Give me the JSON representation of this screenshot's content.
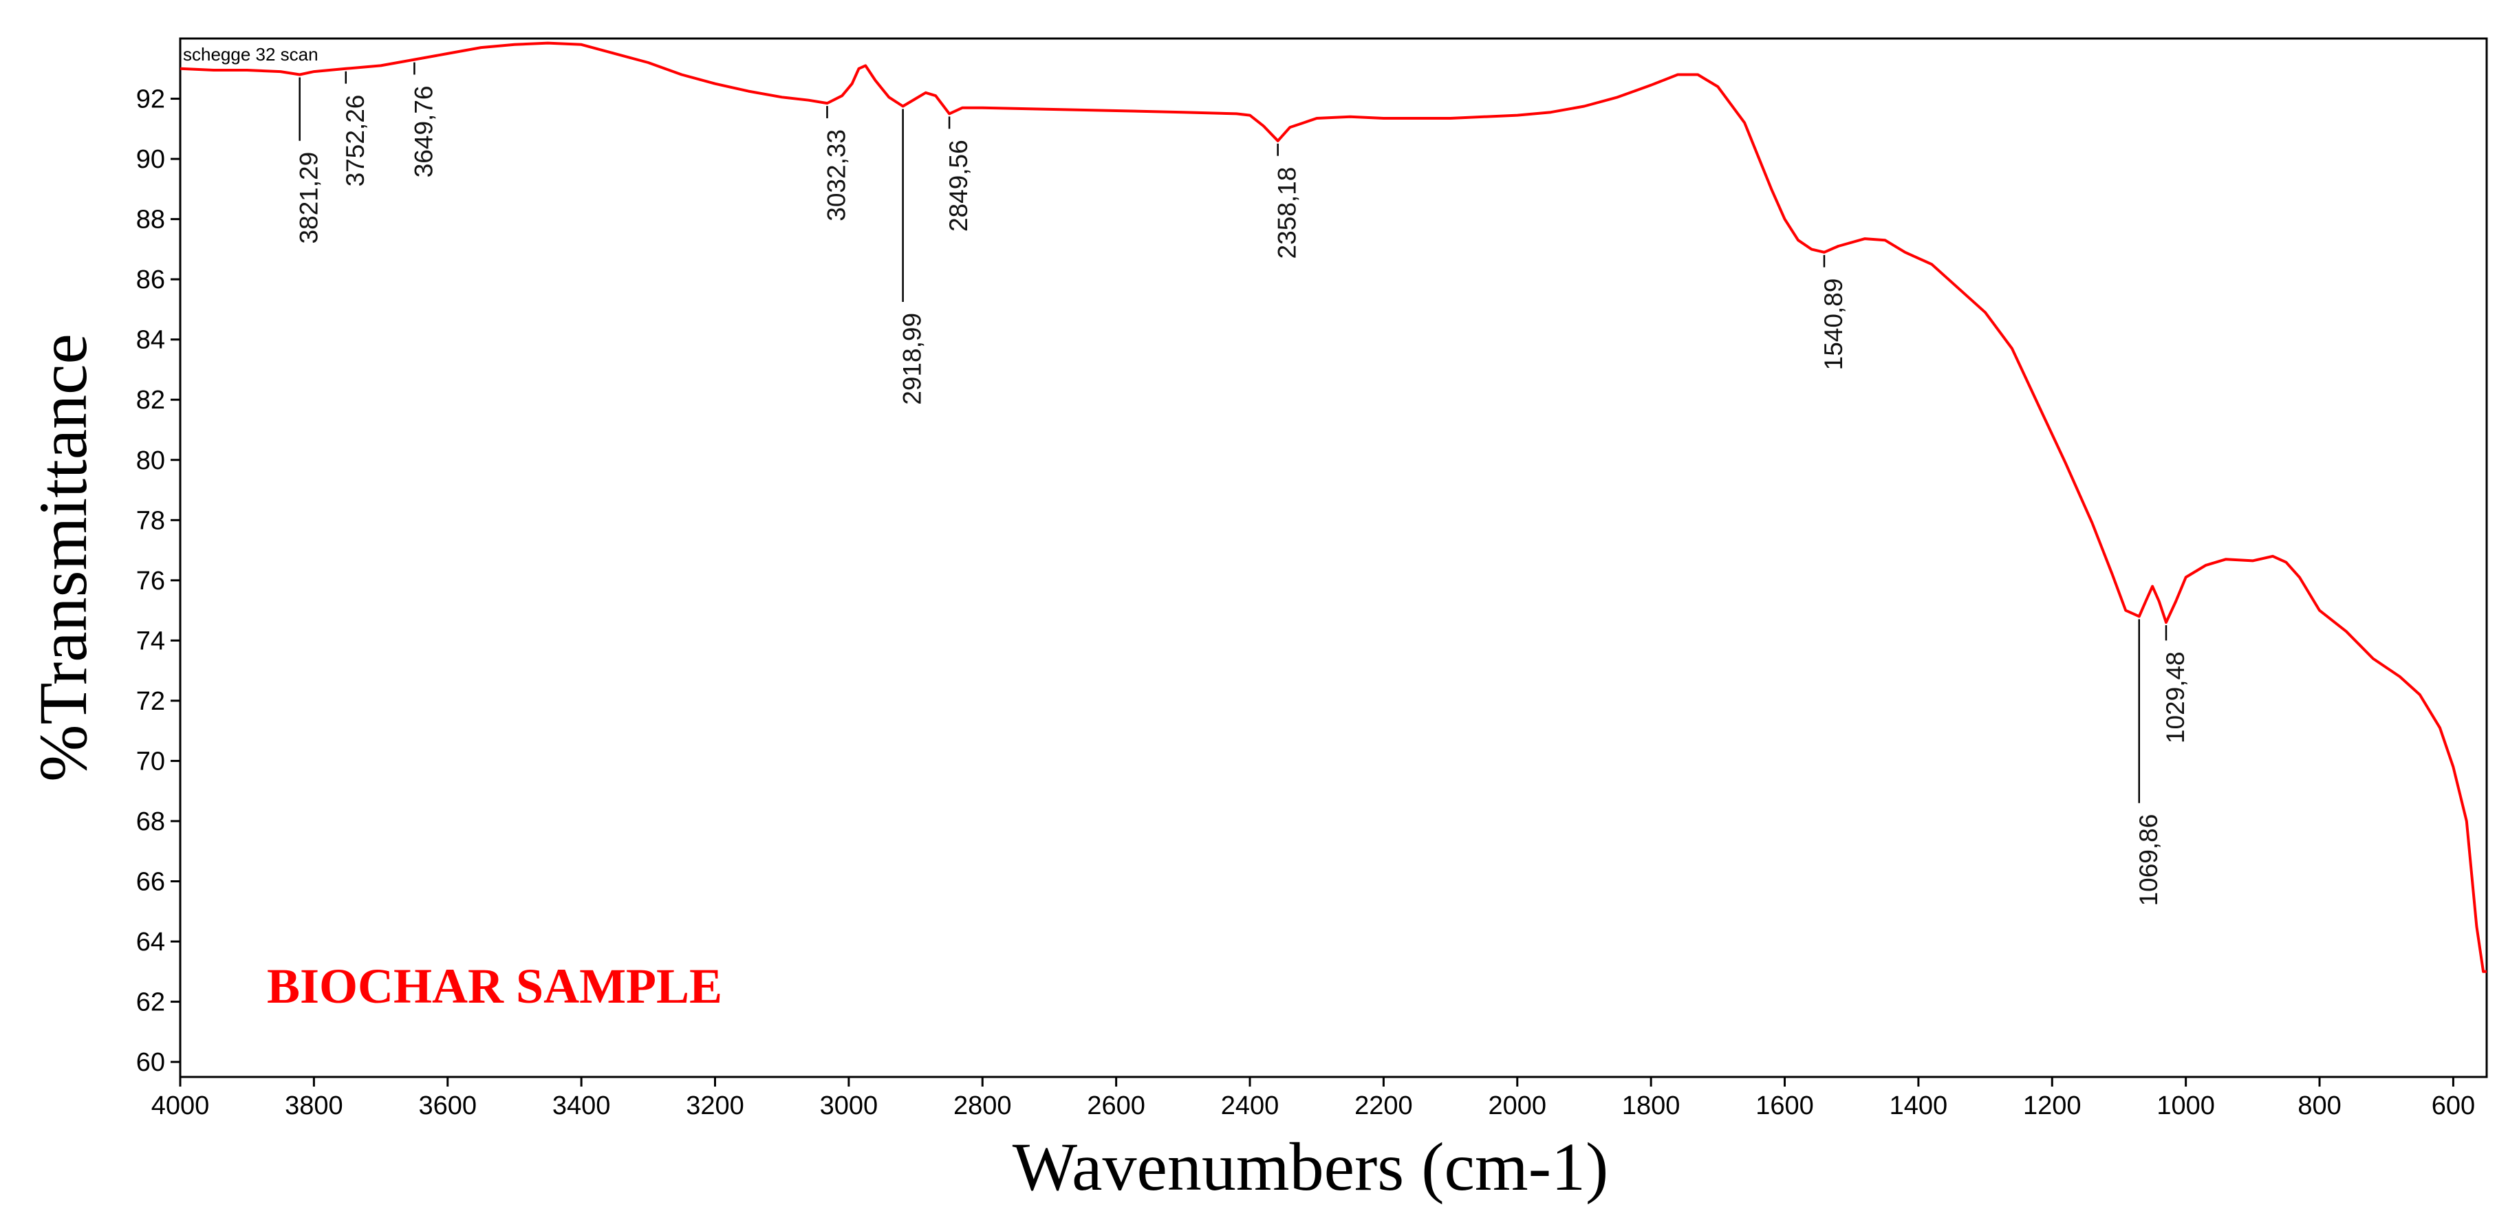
{
  "chart_data": {
    "type": "line",
    "series_name": "schegge 32 scan",
    "xlabel": "Wavenumbers (cm-1)",
    "ylabel": "%Transmittance",
    "annotation": "BIOCHAR SAMPLE",
    "annotation_color": "#ff0000",
    "line_color": "#ff0000",
    "xlim": [
      4000,
      550
    ],
    "ylim": [
      59.5,
      94
    ],
    "x_ticks": [
      4000,
      3800,
      3600,
      3400,
      3200,
      3000,
      2800,
      2600,
      2400,
      2200,
      2000,
      1800,
      1600,
      1400,
      1200,
      1000,
      800,
      600
    ],
    "x_tick_labels": [
      "4000",
      "3800",
      "3600",
      "3400",
      "3200",
      "3000",
      "2800",
      "2600",
      "2400",
      "2200",
      "2000",
      "1800",
      "1600",
      "1400",
      "1200",
      "1000",
      "800",
      "600"
    ],
    "y_ticks": [
      60,
      62,
      64,
      66,
      68,
      70,
      72,
      74,
      76,
      78,
      80,
      82,
      84,
      86,
      88,
      90,
      92
    ],
    "y_tick_labels": [
      "60",
      "62",
      "64",
      "66",
      "68",
      "70",
      "72",
      "74",
      "76",
      "78",
      "80",
      "82",
      "84",
      "86",
      "88",
      "90",
      "92"
    ],
    "spectrum": [
      [
        4000,
        93.0
      ],
      [
        3950,
        92.95
      ],
      [
        3900,
        92.95
      ],
      [
        3850,
        92.9
      ],
      [
        3821.29,
        92.8
      ],
      [
        3800,
        92.9
      ],
      [
        3752.26,
        93.0
      ],
      [
        3700,
        93.1
      ],
      [
        3649.76,
        93.3
      ],
      [
        3600,
        93.5
      ],
      [
        3550,
        93.7
      ],
      [
        3500,
        93.8
      ],
      [
        3450,
        93.85
      ],
      [
        3400,
        93.8
      ],
      [
        3350,
        93.5
      ],
      [
        3300,
        93.2
      ],
      [
        3250,
        92.8
      ],
      [
        3200,
        92.5
      ],
      [
        3150,
        92.25
      ],
      [
        3100,
        92.05
      ],
      [
        3060,
        91.95
      ],
      [
        3032.33,
        91.85
      ],
      [
        3010,
        92.1
      ],
      [
        2995,
        92.5
      ],
      [
        2985,
        93.0
      ],
      [
        2975,
        93.1
      ],
      [
        2960,
        92.6
      ],
      [
        2940,
        92.05
      ],
      [
        2918.99,
        91.75
      ],
      [
        2900,
        92.0
      ],
      [
        2885,
        92.2
      ],
      [
        2870,
        92.1
      ],
      [
        2849.56,
        91.5
      ],
      [
        2830,
        91.7
      ],
      [
        2800,
        91.7
      ],
      [
        2700,
        91.65
      ],
      [
        2600,
        91.6
      ],
      [
        2500,
        91.55
      ],
      [
        2420,
        91.5
      ],
      [
        2400,
        91.45
      ],
      [
        2380,
        91.1
      ],
      [
        2358.18,
        90.6
      ],
      [
        2340,
        91.05
      ],
      [
        2320,
        91.2
      ],
      [
        2300,
        91.35
      ],
      [
        2250,
        91.4
      ],
      [
        2200,
        91.35
      ],
      [
        2100,
        91.35
      ],
      [
        2000,
        91.45
      ],
      [
        1950,
        91.55
      ],
      [
        1900,
        91.75
      ],
      [
        1850,
        92.05
      ],
      [
        1800,
        92.45
      ],
      [
        1760,
        92.8
      ],
      [
        1730,
        92.8
      ],
      [
        1700,
        92.4
      ],
      [
        1660,
        91.2
      ],
      [
        1620,
        89.0
      ],
      [
        1600,
        88.0
      ],
      [
        1580,
        87.3
      ],
      [
        1560,
        87.0
      ],
      [
        1540.89,
        86.9
      ],
      [
        1520,
        87.1
      ],
      [
        1480,
        87.35
      ],
      [
        1450,
        87.3
      ],
      [
        1420,
        86.9
      ],
      [
        1380,
        86.5
      ],
      [
        1340,
        85.7
      ],
      [
        1300,
        84.9
      ],
      [
        1260,
        83.7
      ],
      [
        1220,
        81.8
      ],
      [
        1180,
        79.9
      ],
      [
        1140,
        77.9
      ],
      [
        1110,
        76.2
      ],
      [
        1090,
        75.0
      ],
      [
        1069.86,
        74.8
      ],
      [
        1060,
        75.3
      ],
      [
        1050,
        75.8
      ],
      [
        1040,
        75.3
      ],
      [
        1029.48,
        74.6
      ],
      [
        1015,
        75.3
      ],
      [
        1000,
        76.1
      ],
      [
        970,
        76.5
      ],
      [
        940,
        76.7
      ],
      [
        900,
        76.65
      ],
      [
        870,
        76.8
      ],
      [
        850,
        76.6
      ],
      [
        830,
        76.1
      ],
      [
        800,
        75.0
      ],
      [
        760,
        74.3
      ],
      [
        720,
        73.4
      ],
      [
        680,
        72.8
      ],
      [
        650,
        72.2
      ],
      [
        620,
        71.1
      ],
      [
        600,
        69.8
      ],
      [
        580,
        68.0
      ],
      [
        565,
        64.5
      ],
      [
        555,
        63.0
      ],
      [
        550,
        63.0
      ]
    ],
    "peaks": [
      {
        "x": 3821.29,
        "label": "3821,29",
        "drop": 2.2
      },
      {
        "x": 3752.26,
        "label": "3752,26",
        "drop": 0.5
      },
      {
        "x": 3649.76,
        "label": "3649,76",
        "drop": 0.5
      },
      {
        "x": 3032.33,
        "label": "3032,33",
        "drop": 0.5
      },
      {
        "x": 2918.99,
        "label": "2918,99",
        "drop": 6.5
      },
      {
        "x": 2849.56,
        "label": "2849,56",
        "drop": 0.5
      },
      {
        "x": 2358.18,
        "label": "2358,18",
        "drop": 0.5
      },
      {
        "x": 1540.89,
        "label": "1540,89",
        "drop": 0.5
      },
      {
        "x": 1069.86,
        "label": "1069,86",
        "drop": 6.2
      },
      {
        "x": 1029.48,
        "label": "1029,48",
        "drop": 0.6
      }
    ]
  }
}
